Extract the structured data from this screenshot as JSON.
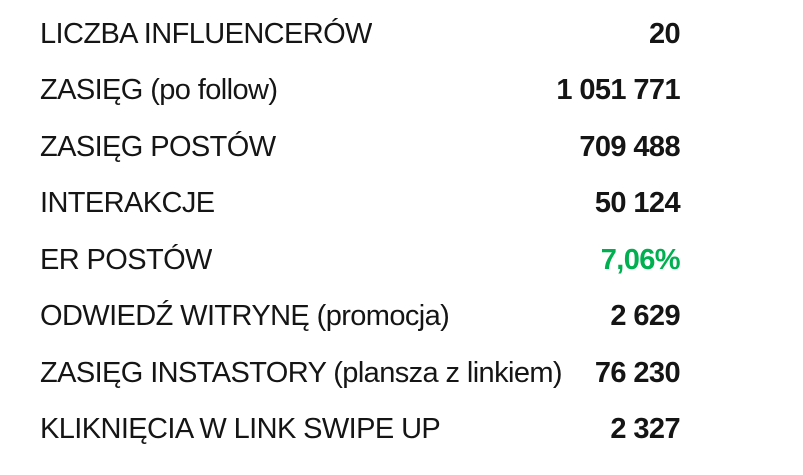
{
  "colors": {
    "background": "#ffffff",
    "text": "#151515",
    "highlight_green": "#00B050"
  },
  "stats_table": {
    "rows": [
      {
        "label": "LICZBA INFLUENCERÓW",
        "value": "20",
        "highlight": false
      },
      {
        "label": "ZASIĘG (po follow)",
        "value": "1 051 771",
        "highlight": false
      },
      {
        "label": "ZASIĘG POSTÓW",
        "value": "709 488",
        "highlight": false
      },
      {
        "label": "INTERAKCJE",
        "value": "50 124",
        "highlight": false
      },
      {
        "label": "ER POSTÓW",
        "value": "7,06%",
        "highlight": true
      },
      {
        "label": "ODWIEDŹ WITRYNĘ (promocja)",
        "value": "2 629",
        "highlight": false
      },
      {
        "label": "ZASIĘG INSTASTORY (plansza z linkiem)",
        "value": "76 230",
        "highlight": false
      },
      {
        "label": "KLIKNIĘCIA W LINK SWIPE UP",
        "value": "2 327",
        "highlight": false
      }
    ]
  }
}
